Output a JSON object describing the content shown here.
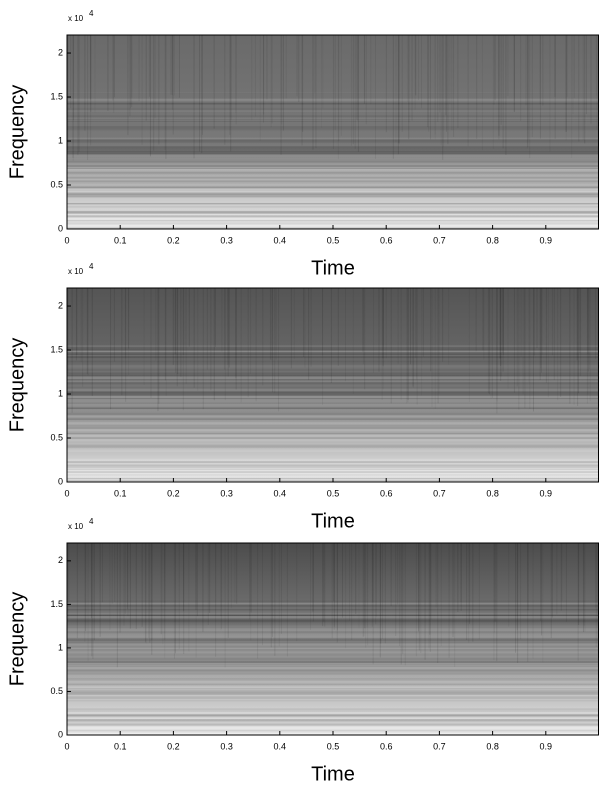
{
  "chart_data": [
    {
      "type": "spectrogram",
      "xlabel": "Time",
      "ylabel": "Frequency",
      "y_multiplier": "x 10",
      "y_multiplier_exponent": "4",
      "xlim": [
        0,
        1
      ],
      "xticks": [
        0,
        0.1,
        0.2,
        0.3,
        0.4,
        0.5,
        0.6,
        0.7,
        0.8,
        0.9
      ],
      "ylim": [
        0,
        2.205
      ],
      "yticks": [
        0,
        0.5,
        1,
        1.5,
        2
      ]
    },
    {
      "type": "spectrogram",
      "xlabel": "Time",
      "ylabel": "Frequency",
      "y_multiplier": "x 10",
      "y_multiplier_exponent": "4",
      "xlim": [
        0,
        1
      ],
      "xticks": [
        0,
        0.1,
        0.2,
        0.3,
        0.4,
        0.5,
        0.6,
        0.7,
        0.8,
        0.9
      ],
      "ylim": [
        0,
        2.205
      ],
      "yticks": [
        0,
        0.5,
        1,
        1.5,
        2
      ]
    },
    {
      "type": "spectrogram",
      "xlabel": "Time",
      "ylabel": "Frequency",
      "y_multiplier": "x 10",
      "y_multiplier_exponent": "4",
      "xlim": [
        0,
        1
      ],
      "xticks": [
        0,
        0.1,
        0.2,
        0.3,
        0.4,
        0.5,
        0.6,
        0.7,
        0.8,
        0.9
      ],
      "ylim": [
        0,
        2.205
      ],
      "yticks": [
        0,
        0.5,
        1,
        1.5,
        2
      ]
    }
  ]
}
